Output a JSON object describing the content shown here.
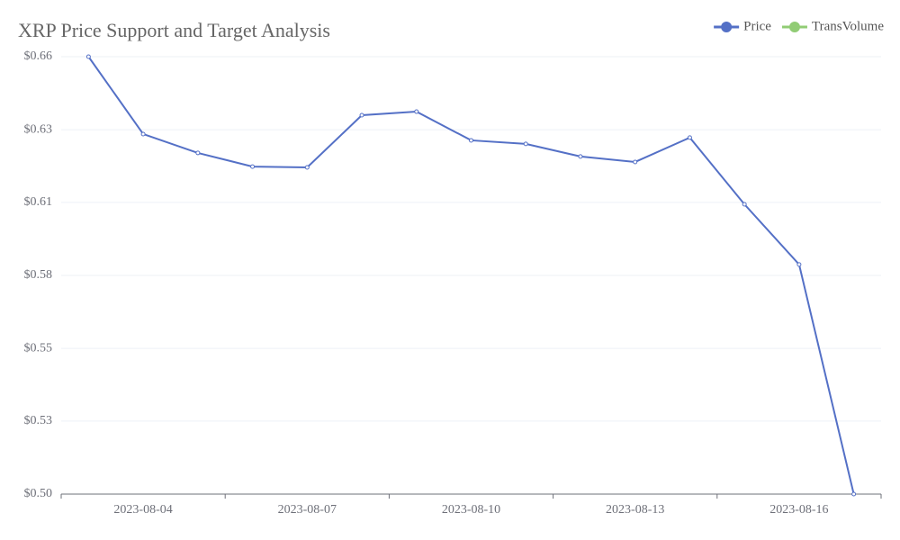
{
  "chart_data": {
    "type": "line",
    "title": "XRP Price Support and Target Analysis",
    "categories": [
      null,
      "2023-08-04",
      null,
      null,
      "2023-08-07",
      null,
      null,
      "2023-08-10",
      null,
      null,
      "2023-08-13",
      null,
      null,
      "2023-08-16",
      null
    ],
    "series": [
      {
        "name": "Price",
        "color": "#5470c6",
        "values": [
          0.66,
          0.6317,
          0.6248,
          0.6198,
          0.6195,
          0.6386,
          0.6399,
          0.6294,
          0.6281,
          0.6235,
          0.6215,
          0.6304,
          0.606,
          0.584,
          0.5
        ]
      },
      {
        "name": "TransVolume",
        "color": "#91cc75",
        "values": [
          null,
          null,
          null,
          null,
          null,
          null,
          null,
          null,
          null,
          null,
          null,
          null,
          null,
          null,
          null
        ]
      }
    ],
    "ylim": [
      0.5,
      0.66
    ],
    "yticks": [
      {
        "value": 0.5,
        "label": "$0.50"
      },
      {
        "value": 0.5267,
        "label": "$0.53"
      },
      {
        "value": 0.5533,
        "label": "$0.55"
      },
      {
        "value": 0.58,
        "label": "$0.58"
      },
      {
        "value": 0.6067,
        "label": "$0.61"
      },
      {
        "value": 0.6333,
        "label": "$0.63"
      },
      {
        "value": 0.66,
        "label": "$0.66"
      }
    ],
    "grid": true,
    "legend": "top-right"
  }
}
